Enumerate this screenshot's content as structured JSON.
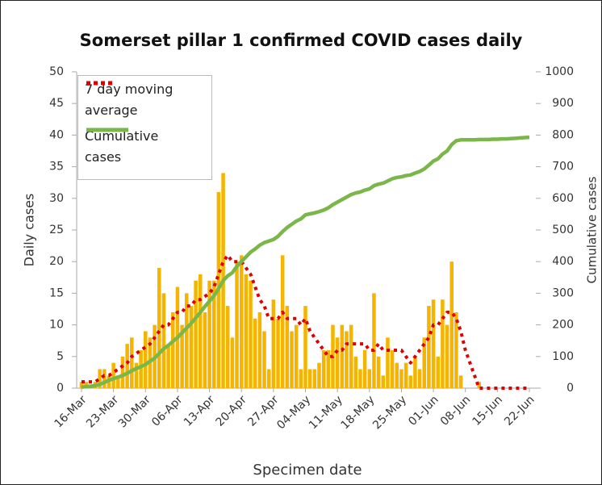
{
  "chart_data": {
    "type": "bar",
    "title": "Somerset pillar 1 confirmed COVID cases daily",
    "x_label": "Specimen date",
    "y_label": "Daily cases",
    "y2_label": "Cumulative cases",
    "categories": [
      "16-Mar",
      null,
      null,
      null,
      null,
      null,
      null,
      "23-Mar",
      null,
      null,
      null,
      null,
      null,
      null,
      "30-Mar",
      null,
      null,
      null,
      null,
      null,
      null,
      "06-Apr",
      null,
      null,
      null,
      null,
      null,
      null,
      "13-Apr",
      null,
      null,
      null,
      null,
      null,
      null,
      "20-Apr",
      null,
      null,
      null,
      null,
      null,
      null,
      "27-Apr",
      null,
      null,
      null,
      null,
      null,
      null,
      "04-May",
      null,
      null,
      null,
      null,
      null,
      null,
      "11-May",
      null,
      null,
      null,
      null,
      null,
      null,
      "18-May",
      null,
      null,
      null,
      null,
      null,
      null,
      "25-May",
      null,
      null,
      null,
      null,
      null,
      null,
      "01-Jun",
      null,
      null,
      null,
      null,
      null,
      null,
      "08-Jun",
      null,
      null,
      null,
      null,
      null,
      null,
      "15-Jun",
      null,
      null,
      null,
      null,
      null,
      null,
      "22-Jun"
    ],
    "series": [
      {
        "name": "Daily cases",
        "type": "bar",
        "color": "#f5b400",
        "values": [
          1,
          1,
          0,
          1,
          3,
          3,
          2,
          4,
          2,
          5,
          7,
          8,
          4,
          6,
          9,
          8,
          10,
          19,
          15,
          7,
          12,
          16,
          10,
          15,
          13,
          17,
          18,
          12,
          17,
          17,
          31,
          34,
          13,
          8,
          20,
          21,
          18,
          17,
          11,
          12,
          9,
          3,
          14,
          11,
          21,
          13,
          9,
          10,
          3,
          13,
          3,
          3,
          4,
          6,
          6,
          10,
          8,
          10,
          9,
          10,
          5,
          3,
          6,
          3,
          15,
          5,
          2,
          8,
          6,
          4,
          3,
          4,
          2,
          5,
          3,
          8,
          13,
          14,
          5,
          14,
          10,
          20,
          12,
          2,
          0,
          0,
          0,
          1,
          0,
          0,
          0,
          0,
          0,
          0,
          0,
          0,
          0,
          0,
          0
        ]
      },
      {
        "name": "7 day moving average",
        "type": "line",
        "color": "#e00000",
        "dash": true,
        "values": [
          1,
          1,
          1,
          1,
          1.5,
          2,
          2,
          2.5,
          3,
          3.5,
          4,
          5,
          5.5,
          6,
          6.5,
          7,
          8,
          9,
          10,
          10,
          11,
          12,
          12,
          13,
          13,
          14,
          14,
          14.5,
          15,
          16,
          18,
          20,
          21,
          20,
          20,
          20,
          19,
          18,
          16,
          14,
          13,
          11,
          11,
          11,
          12,
          11,
          11,
          11,
          10,
          11,
          9,
          8,
          7,
          6,
          5,
          5,
          6,
          6,
          7,
          7,
          7,
          7,
          7,
          6,
          6,
          7,
          6,
          6,
          6,
          6,
          6,
          5,
          4,
          5,
          6,
          7,
          8,
          10,
          10,
          11,
          12,
          12,
          11,
          9,
          6,
          4,
          2,
          0,
          0,
          0,
          0,
          0,
          0,
          0,
          0,
          0,
          0,
          0,
          0
        ]
      },
      {
        "name": "Cumulative cases",
        "type": "line",
        "color": "#7ab648",
        "axis": "y2",
        "values": [
          3,
          5,
          6,
          8,
          12,
          18,
          25,
          30,
          35,
          40,
          47,
          55,
          62,
          68,
          75,
          85,
          95,
          110,
          125,
          135,
          148,
          160,
          175,
          190,
          205,
          222,
          240,
          258,
          275,
          292,
          315,
          340,
          355,
          365,
          385,
          400,
          415,
          430,
          440,
          452,
          460,
          465,
          470,
          480,
          495,
          508,
          518,
          528,
          535,
          548,
          551,
          554,
          558,
          563,
          570,
          580,
          588,
          596,
          604,
          612,
          617,
          620,
          626,
          630,
          640,
          645,
          648,
          655,
          662,
          666,
          668,
          672,
          674,
          680,
          685,
          693,
          705,
          718,
          725,
          740,
          750,
          770,
          782,
          785,
          785,
          785,
          785,
          786,
          786,
          786,
          787,
          787,
          788,
          788,
          789,
          790,
          791,
          792,
          793
        ]
      }
    ],
    "ylim": [
      0,
      50
    ],
    "yticks": [
      0,
      5,
      10,
      15,
      20,
      25,
      30,
      35,
      40,
      45,
      50
    ],
    "y2lim": [
      0,
      1000
    ],
    "y2ticks": [
      0,
      100,
      200,
      300,
      400,
      500,
      600,
      700,
      800,
      900,
      1000
    ],
    "grid": false,
    "legend": "top-left"
  }
}
